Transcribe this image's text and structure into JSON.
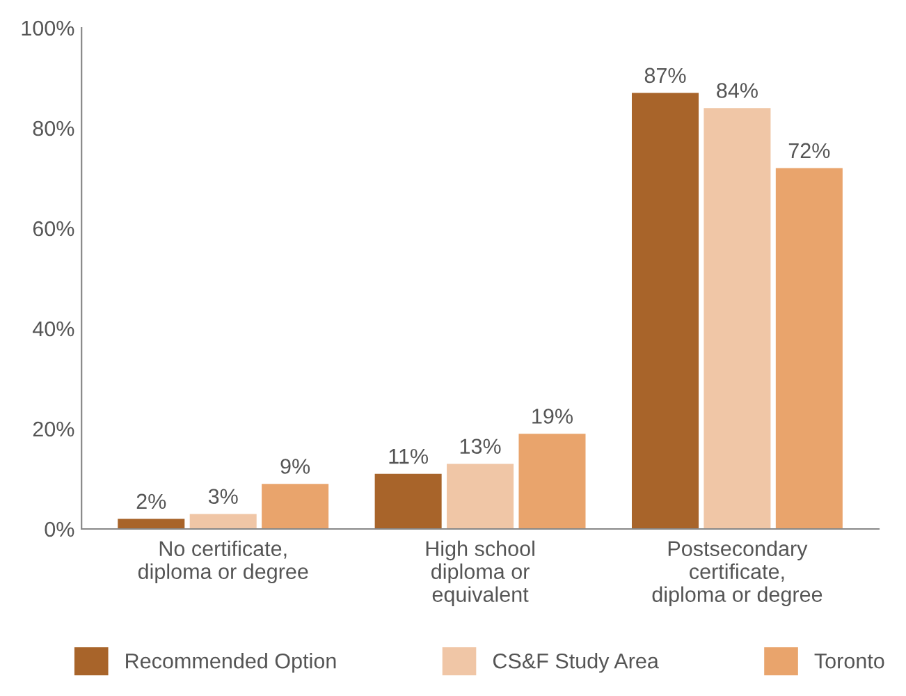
{
  "chart_data": {
    "type": "bar",
    "categories": [
      "No certificate,\ndiploma or degree",
      "High school\ndiploma or\nequivalent",
      "Postsecondary\ncertificate,\ndiploma or degree"
    ],
    "series": [
      {
        "name": "Recommended Option",
        "color": "#a8642a",
        "values": [
          2,
          11,
          87
        ],
        "value_labels": [
          "2%",
          "11%",
          "87%"
        ]
      },
      {
        "name": "CS&F Study Area",
        "color": "#f0c6a6",
        "values": [
          3,
          13,
          84
        ],
        "value_labels": [
          "3%",
          "13%",
          "84%"
        ]
      },
      {
        "name": "Toronto",
        "color": "#e9a46c",
        "values": [
          9,
          19,
          72
        ],
        "value_labels": [
          "9%",
          "19%",
          "72%"
        ]
      }
    ],
    "ylim": [
      0,
      100
    ],
    "yticks": [
      {
        "value": 0,
        "label": "0%"
      },
      {
        "value": 20,
        "label": "20%"
      },
      {
        "value": 40,
        "label": "40%"
      },
      {
        "value": 60,
        "label": "60%"
      },
      {
        "value": 80,
        "label": "80%"
      },
      {
        "value": 100,
        "label": "100%"
      }
    ],
    "grid": false,
    "legend": "bottom"
  }
}
